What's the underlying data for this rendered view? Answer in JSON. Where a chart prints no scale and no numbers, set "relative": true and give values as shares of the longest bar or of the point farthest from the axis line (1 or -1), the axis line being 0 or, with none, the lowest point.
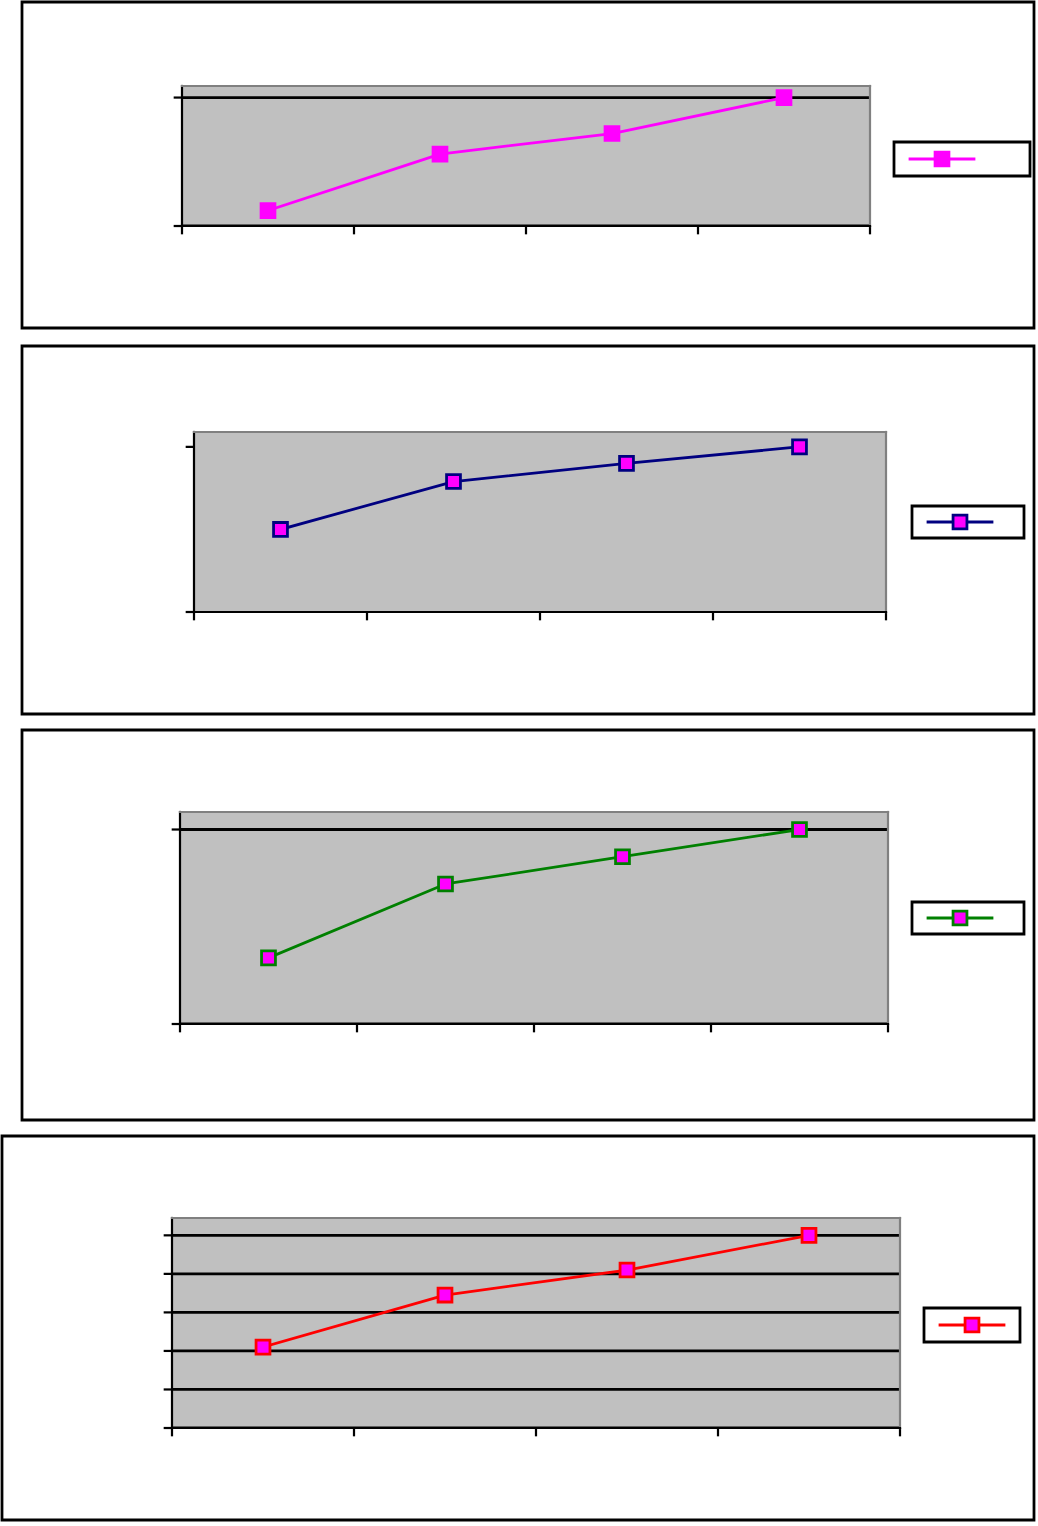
{
  "chart_data": [
    {
      "type": "line",
      "relative": true,
      "categories": [
        null,
        null,
        null,
        null
      ],
      "marker": "square",
      "line_style": "solid",
      "grid": "y",
      "series": [
        {
          "color": "#ff00ff",
          "values": [
            0.12,
            0.56,
            0.72,
            1.0
          ]
        }
      ]
    },
    {
      "type": "line",
      "relative": true,
      "categories": [
        null,
        null,
        null,
        null
      ],
      "marker": "square",
      "line_style": "solid",
      "series": [
        {
          "color": "#000080",
          "values": [
            0.5,
            0.79,
            0.9,
            1.0
          ]
        }
      ]
    },
    {
      "type": "line",
      "relative": true,
      "categories": [
        null,
        null,
        null,
        null
      ],
      "marker": "square",
      "line_style": "solid",
      "grid": "y",
      "series": [
        {
          "color": "#008000",
          "values": [
            0.34,
            0.72,
            0.86,
            1.0
          ]
        }
      ]
    },
    {
      "type": "line",
      "relative": true,
      "categories": [
        null,
        null,
        null,
        null
      ],
      "marker": "square",
      "line_style": "solid",
      "grid": "y",
      "series": [
        {
          "color": "#ff0000",
          "values": [
            0.42,
            0.69,
            0.82,
            1.0
          ]
        }
      ]
    }
  ]
}
